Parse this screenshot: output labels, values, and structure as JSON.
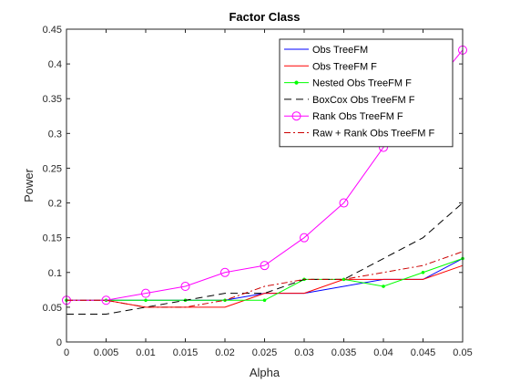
{
  "chart_data": {
    "type": "line",
    "title": "Factor Class",
    "xlabel": "Alpha",
    "ylabel": "Power",
    "xlim": [
      0,
      0.05
    ],
    "ylim": [
      0,
      0.45
    ],
    "x_ticks": [
      "0",
      "0.005",
      "0.01",
      "0.015",
      "0.02",
      "0.025",
      "0.03",
      "0.035",
      "0.04",
      "0.045",
      "0.05"
    ],
    "y_ticks": [
      "0",
      "0.05",
      "0.1",
      "0.15",
      "0.2",
      "0.25",
      "0.3",
      "0.35",
      "0.4",
      "0.45"
    ],
    "grid": false,
    "legend_position": "top-right",
    "x": [
      0,
      0.005,
      0.01,
      0.015,
      0.02,
      0.025,
      0.03,
      0.035,
      0.04,
      0.045,
      0.05
    ],
    "series": [
      {
        "name": "Obs TreeFM",
        "color": "#0000ff",
        "dash": "solid",
        "marker": "none",
        "values": [
          0.06,
          0.06,
          0.06,
          0.06,
          0.06,
          0.07,
          0.07,
          0.08,
          0.09,
          0.09,
          0.12
        ]
      },
      {
        "name": "Obs TreeFM F",
        "color": "#ff0000",
        "dash": "solid",
        "marker": "none",
        "values": [
          0.06,
          0.06,
          0.05,
          0.05,
          0.05,
          0.07,
          0.07,
          0.09,
          0.09,
          0.09,
          0.11
        ]
      },
      {
        "name": "Nested Obs TreeFM F",
        "color": "#00ff00",
        "dash": "solid",
        "marker": "dot",
        "values": [
          0.06,
          0.06,
          0.06,
          0.06,
          0.06,
          0.06,
          0.09,
          0.09,
          0.08,
          0.1,
          0.12
        ]
      },
      {
        "name": "BoxCox Obs TreeFM F",
        "color": "#000000",
        "dash": "dashed",
        "marker": "none",
        "values": [
          0.04,
          0.04,
          0.05,
          0.06,
          0.07,
          0.07,
          0.09,
          0.09,
          0.12,
          0.15,
          0.2
        ]
      },
      {
        "name": "Rank Obs TreeFM F",
        "color": "#ff00ff",
        "dash": "solid",
        "marker": "circle",
        "values": [
          0.06,
          0.06,
          0.07,
          0.08,
          0.1,
          0.11,
          0.15,
          0.2,
          0.28,
          0.35,
          0.42
        ]
      },
      {
        "name": "Raw + Rank Obs TreeFM F",
        "color": "#cc0000",
        "dash": "dashdot",
        "marker": "none",
        "values": [
          0.06,
          0.06,
          0.05,
          0.05,
          0.06,
          0.08,
          0.09,
          0.09,
          0.1,
          0.11,
          0.13
        ]
      }
    ]
  }
}
